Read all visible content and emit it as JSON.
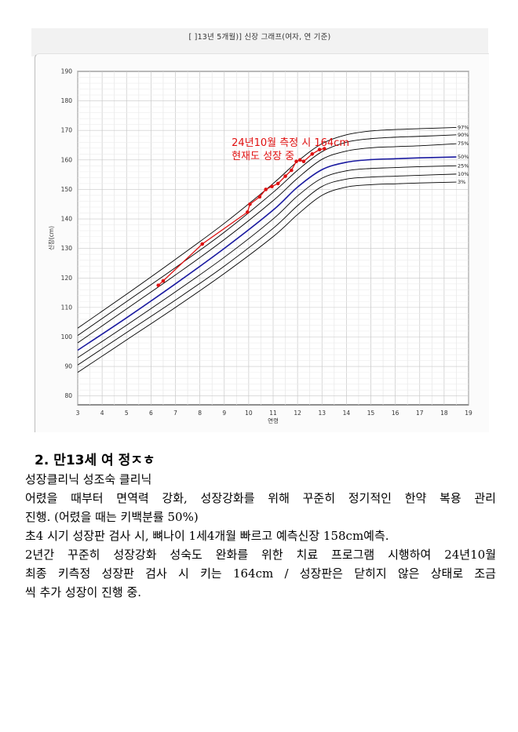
{
  "figure": {
    "title": "[        ]13년 5개월)] 신장 그래프(여자, 연 기준)",
    "chart_data": {
      "type": "line",
      "xlabel": "연령",
      "ylabel": "신장(cm)",
      "xlim": [
        3,
        19
      ],
      "ylim": [
        77,
        190
      ],
      "x_ticks": [
        "3",
        "4",
        "5",
        "6",
        "7",
        "8",
        "9",
        "10",
        "11",
        "12",
        "13",
        "14",
        "15",
        "16",
        "17",
        "18",
        "19"
      ],
      "y_ticks": [
        "80",
        "90",
        "100",
        "110",
        "120",
        "130",
        "140",
        "150",
        "160",
        "170",
        "180",
        "190"
      ],
      "grid": true,
      "annotation": [
        "24년10월 측정 시 164cm",
        "현재도 성장 중"
      ],
      "percentile_x": [
        3,
        5,
        7,
        9,
        11,
        12,
        13,
        14,
        15,
        16,
        17,
        18.5
      ],
      "series": [
        {
          "name": "97%",
          "color": "#000000",
          "values": [
            103,
            114.5,
            126.3,
            138.5,
            152,
            159.5,
            165.5,
            168.5,
            169.8,
            170.3,
            170.6,
            171
          ]
        },
        {
          "name": "90%",
          "color": "#000000",
          "values": [
            100.5,
            112,
            123.5,
            135.5,
            149,
            156.5,
            162.8,
            166,
            167.2,
            167.7,
            168,
            168.5
          ]
        },
        {
          "name": "75%",
          "color": "#000000",
          "values": [
            98,
            109.5,
            121,
            133,
            146.2,
            153.8,
            160.2,
            163,
            164.1,
            164.5,
            164.8,
            165.5
          ]
        },
        {
          "name": "50%",
          "color": "#1a1aa0",
          "values": [
            95.5,
            106.5,
            118,
            130,
            143,
            150.8,
            156.7,
            159.2,
            160.1,
            160.4,
            160.7,
            161
          ]
        },
        {
          "name": "25%",
          "color": "#000000",
          "values": [
            93,
            104,
            115.3,
            127,
            140,
            147.8,
            153.8,
            156.3,
            157.1,
            157.4,
            157.7,
            158
          ]
        },
        {
          "name": "10%",
          "color": "#000000",
          "values": [
            90.5,
            101.5,
            112.5,
            124,
            136.8,
            144.5,
            151,
            153.5,
            154.2,
            154.5,
            154.8,
            155.2
          ]
        },
        {
          "name": "3%",
          "color": "#000000",
          "values": [
            88,
            99,
            110,
            121.5,
            134,
            141.5,
            148,
            150.8,
            151.6,
            151.9,
            152.2,
            152.5
          ]
        }
      ],
      "measured": {
        "color": "#dd1111",
        "x": [
          6.3,
          6.5,
          8.1,
          9.95,
          10.05,
          10.45,
          10.7,
          10.95,
          11.2,
          11.5,
          11.75,
          11.95,
          12.1,
          12.25,
          12.6,
          12.9,
          13.1
        ],
        "y": [
          117.5,
          119,
          131.5,
          142.3,
          145,
          147.5,
          150,
          151,
          152,
          154.5,
          156.5,
          159.5,
          160,
          159.5,
          162,
          163.5,
          163.8
        ]
      }
    }
  },
  "heading": "2. 만13세 여 정ㅈㅎ",
  "paragraph_lines": [
    "성장클리닉 성조숙 클리닉",
    "어렸을 때부터 면역력 강화, 성장강화를 위해 꾸준히 정기적인 한약 복용 관리",
    "진행. (어렸을 때는 키백분률 50%)",
    "초4 시기 성장판 검사 시, 뼈나이 1세4개월 빠르고 예측신장 158cm예측.",
    "2년간 꾸준히 성장강화 성숙도 완화를 위한 치료 프로그램 시행하여 24년10월",
    "최종 키측정 성장판 검사 시 키는 164cm / 성장판은 닫히지 않은 상태로 조금",
    "씩 추가 성장이 진행 중."
  ]
}
